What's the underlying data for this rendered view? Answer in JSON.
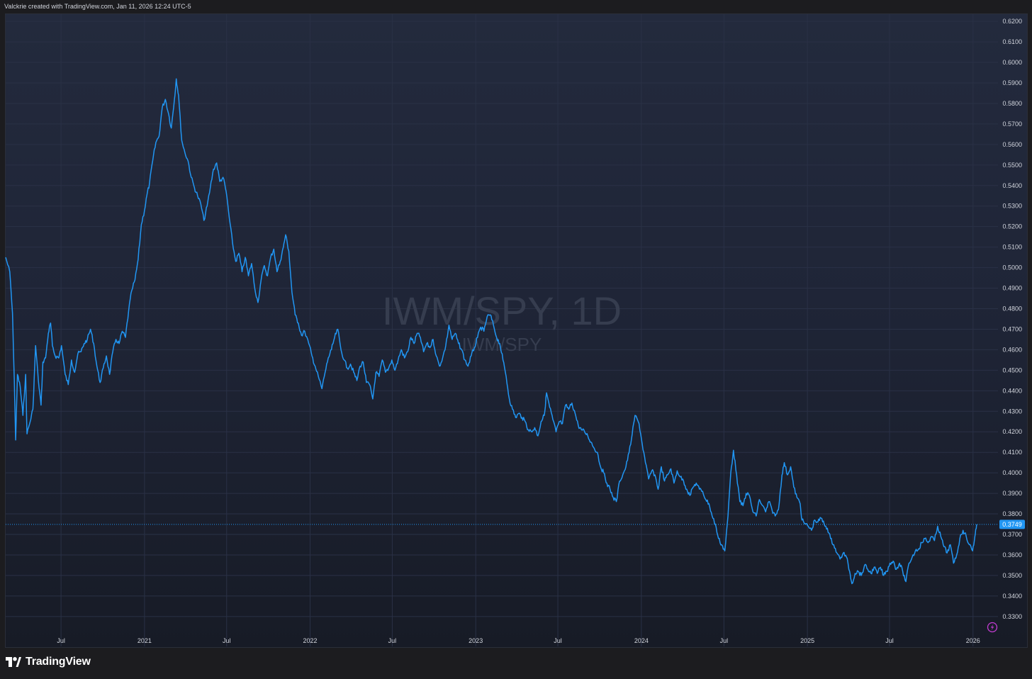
{
  "header": {
    "credit": "Valckrie created with TradingView.com, Jan 11, 2026 12:24 UTC-5"
  },
  "watermark": {
    "title": "IWM/SPY, 1D",
    "subtitle": "IWM/SPY"
  },
  "footer": {
    "brand": "TradingView",
    "logo_icon": "tradingview-logo-icon"
  },
  "badge": {
    "icon": "lightning-icon",
    "color": "#c23cd1"
  },
  "colors": {
    "line": "#2196f3",
    "grid": "#2a3146",
    "axis_text": "#d1d4dc",
    "price_label_bg": "#2196f3",
    "watermark": "#363d4f"
  },
  "chart_data": {
    "type": "line",
    "title": "IWM/SPY, 1D",
    "series_name": "IWM/SPY",
    "timeframe": "1D",
    "current_value": "0.3749",
    "y_ticks": [
      "0.6200",
      "0.6100",
      "0.6000",
      "0.5900",
      "0.5800",
      "0.5700",
      "0.5600",
      "0.5500",
      "0.5400",
      "0.5300",
      "0.5200",
      "0.5100",
      "0.5000",
      "0.4900",
      "0.4800",
      "0.4700",
      "0.4600",
      "0.4500",
      "0.4400",
      "0.4300",
      "0.4200",
      "0.4100",
      "0.4000",
      "0.3900",
      "0.3800",
      "0.3700",
      "0.3600",
      "0.3500",
      "0.3400",
      "0.3300"
    ],
    "x_ticks": [
      {
        "label": "Jul",
        "date": "2020-07-01"
      },
      {
        "label": "2021",
        "date": "2021-01-01"
      },
      {
        "label": "Jul",
        "date": "2021-07-01"
      },
      {
        "label": "2022",
        "date": "2022-01-01"
      },
      {
        "label": "Jul",
        "date": "2022-07-01"
      },
      {
        "label": "2023",
        "date": "2023-01-01"
      },
      {
        "label": "Jul",
        "date": "2023-07-01"
      },
      {
        "label": "2024",
        "date": "2024-01-01"
      },
      {
        "label": "Jul",
        "date": "2024-07-01"
      },
      {
        "label": "2025",
        "date": "2025-01-01"
      },
      {
        "label": "Jul",
        "date": "2025-07-01"
      },
      {
        "label": "2026",
        "date": "2026-01-01"
      }
    ],
    "x_range": [
      "2020-03-01",
      "2026-02-25"
    ],
    "ylim": [
      0.322,
      0.6235
    ],
    "grid": true,
    "points": [
      [
        "2020-03-01",
        0.505
      ],
      [
        "2020-03-10",
        0.498
      ],
      [
        "2020-03-16",
        0.478
      ],
      [
        "2020-03-20",
        0.445
      ],
      [
        "2020-03-23",
        0.416
      ],
      [
        "2020-03-27",
        0.448
      ],
      [
        "2020-04-02",
        0.442
      ],
      [
        "2020-04-08",
        0.428
      ],
      [
        "2020-04-14",
        0.448
      ],
      [
        "2020-04-17",
        0.419
      ],
      [
        "2020-04-24",
        0.425
      ],
      [
        "2020-04-30",
        0.431
      ],
      [
        "2020-05-06",
        0.462
      ],
      [
        "2020-05-12",
        0.445
      ],
      [
        "2020-05-18",
        0.433
      ],
      [
        "2020-05-22",
        0.454
      ],
      [
        "2020-05-28",
        0.456
      ],
      [
        "2020-06-03",
        0.468
      ],
      [
        "2020-06-08",
        0.473
      ],
      [
        "2020-06-12",
        0.462
      ],
      [
        "2020-06-18",
        0.457
      ],
      [
        "2020-06-26",
        0.456
      ],
      [
        "2020-07-02",
        0.462
      ],
      [
        "2020-07-10",
        0.448
      ],
      [
        "2020-07-17",
        0.443
      ],
      [
        "2020-07-24",
        0.455
      ],
      [
        "2020-07-31",
        0.449
      ],
      [
        "2020-08-07",
        0.458
      ],
      [
        "2020-08-14",
        0.459
      ],
      [
        "2020-08-21",
        0.463
      ],
      [
        "2020-08-28",
        0.465
      ],
      [
        "2020-09-04",
        0.47
      ],
      [
        "2020-09-11",
        0.463
      ],
      [
        "2020-09-18",
        0.452
      ],
      [
        "2020-09-25",
        0.444
      ],
      [
        "2020-10-02",
        0.451
      ],
      [
        "2020-10-09",
        0.457
      ],
      [
        "2020-10-16",
        0.448
      ],
      [
        "2020-10-23",
        0.459
      ],
      [
        "2020-10-30",
        0.465
      ],
      [
        "2020-11-06",
        0.463
      ],
      [
        "2020-11-13",
        0.469
      ],
      [
        "2020-11-20",
        0.466
      ],
      [
        "2020-11-27",
        0.479
      ],
      [
        "2020-12-04",
        0.489
      ],
      [
        "2020-12-11",
        0.494
      ],
      [
        "2020-12-18",
        0.504
      ],
      [
        "2020-12-25",
        0.521
      ],
      [
        "2021-01-01",
        0.528
      ],
      [
        "2021-01-06",
        0.535
      ],
      [
        "2021-01-12",
        0.541
      ],
      [
        "2021-01-19",
        0.552
      ],
      [
        "2021-01-26",
        0.561
      ],
      [
        "2021-02-02",
        0.564
      ],
      [
        "2021-02-09",
        0.578
      ],
      [
        "2021-02-16",
        0.582
      ],
      [
        "2021-02-23",
        0.575
      ],
      [
        "2021-03-01",
        0.568
      ],
      [
        "2021-03-08",
        0.582
      ],
      [
        "2021-03-12",
        0.592
      ],
      [
        "2021-03-17",
        0.584
      ],
      [
        "2021-03-24",
        0.562
      ],
      [
        "2021-03-31",
        0.556
      ],
      [
        "2021-04-07",
        0.552
      ],
      [
        "2021-04-14",
        0.544
      ],
      [
        "2021-04-21",
        0.539
      ],
      [
        "2021-04-28",
        0.535
      ],
      [
        "2021-05-05",
        0.531
      ],
      [
        "2021-05-12",
        0.523
      ],
      [
        "2021-05-19",
        0.53
      ],
      [
        "2021-05-26",
        0.539
      ],
      [
        "2021-06-02",
        0.548
      ],
      [
        "2021-06-09",
        0.551
      ],
      [
        "2021-06-16",
        0.542
      ],
      [
        "2021-06-23",
        0.544
      ],
      [
        "2021-06-30",
        0.537
      ],
      [
        "2021-07-07",
        0.524
      ],
      [
        "2021-07-14",
        0.512
      ],
      [
        "2021-07-21",
        0.503
      ],
      [
        "2021-07-28",
        0.507
      ],
      [
        "2021-08-04",
        0.498
      ],
      [
        "2021-08-11",
        0.505
      ],
      [
        "2021-08-18",
        0.496
      ],
      [
        "2021-08-25",
        0.502
      ],
      [
        "2021-09-01",
        0.49
      ],
      [
        "2021-09-08",
        0.483
      ],
      [
        "2021-09-15",
        0.494
      ],
      [
        "2021-09-22",
        0.501
      ],
      [
        "2021-09-29",
        0.496
      ],
      [
        "2021-10-06",
        0.505
      ],
      [
        "2021-10-13",
        0.509
      ],
      [
        "2021-10-20",
        0.498
      ],
      [
        "2021-10-27",
        0.503
      ],
      [
        "2021-11-03",
        0.51
      ],
      [
        "2021-11-08",
        0.516
      ],
      [
        "2021-11-15",
        0.508
      ],
      [
        "2021-11-22",
        0.488
      ],
      [
        "2021-11-29",
        0.477
      ],
      [
        "2021-12-06",
        0.473
      ],
      [
        "2021-12-13",
        0.467
      ],
      [
        "2021-12-20",
        0.469
      ],
      [
        "2021-12-29",
        0.463
      ],
      [
        "2022-01-05",
        0.457
      ],
      [
        "2022-01-12",
        0.452
      ],
      [
        "2022-01-19",
        0.447
      ],
      [
        "2022-01-27",
        0.441
      ],
      [
        "2022-02-03",
        0.449
      ],
      [
        "2022-02-10",
        0.456
      ],
      [
        "2022-02-17",
        0.46
      ],
      [
        "2022-02-24",
        0.466
      ],
      [
        "2022-03-03",
        0.47
      ],
      [
        "2022-03-10",
        0.46
      ],
      [
        "2022-03-17",
        0.455
      ],
      [
        "2022-03-24",
        0.451
      ],
      [
        "2022-03-31",
        0.453
      ],
      [
        "2022-04-07",
        0.449
      ],
      [
        "2022-04-14",
        0.445
      ],
      [
        "2022-04-21",
        0.452
      ],
      [
        "2022-04-28",
        0.454
      ],
      [
        "2022-05-05",
        0.444
      ],
      [
        "2022-05-12",
        0.443
      ],
      [
        "2022-05-19",
        0.436
      ],
      [
        "2022-05-26",
        0.449
      ],
      [
        "2022-06-02",
        0.447
      ],
      [
        "2022-06-09",
        0.455
      ],
      [
        "2022-06-16",
        0.449
      ],
      [
        "2022-06-23",
        0.451
      ],
      [
        "2022-06-30",
        0.455
      ],
      [
        "2022-07-07",
        0.45
      ],
      [
        "2022-07-14",
        0.455
      ],
      [
        "2022-07-21",
        0.46
      ],
      [
        "2022-07-28",
        0.456
      ],
      [
        "2022-08-04",
        0.459
      ],
      [
        "2022-08-11",
        0.466
      ],
      [
        "2022-08-18",
        0.463
      ],
      [
        "2022-08-25",
        0.468
      ],
      [
        "2022-09-01",
        0.466
      ],
      [
        "2022-09-08",
        0.459
      ],
      [
        "2022-09-15",
        0.463
      ],
      [
        "2022-09-22",
        0.461
      ],
      [
        "2022-09-29",
        0.465
      ],
      [
        "2022-10-06",
        0.457
      ],
      [
        "2022-10-13",
        0.452
      ],
      [
        "2022-10-20",
        0.456
      ],
      [
        "2022-10-27",
        0.462
      ],
      [
        "2022-11-03",
        0.472
      ],
      [
        "2022-11-10",
        0.465
      ],
      [
        "2022-11-17",
        0.468
      ],
      [
        "2022-11-24",
        0.463
      ],
      [
        "2022-12-01",
        0.46
      ],
      [
        "2022-12-08",
        0.455
      ],
      [
        "2022-12-15",
        0.452
      ],
      [
        "2022-12-22",
        0.457
      ],
      [
        "2022-12-29",
        0.461
      ],
      [
        "2023-01-05",
        0.466
      ],
      [
        "2023-01-12",
        0.471
      ],
      [
        "2023-01-19",
        0.469
      ],
      [
        "2023-01-26",
        0.476
      ],
      [
        "2023-02-02",
        0.477
      ],
      [
        "2023-02-09",
        0.472
      ],
      [
        "2023-02-16",
        0.466
      ],
      [
        "2023-02-23",
        0.463
      ],
      [
        "2023-03-02",
        0.455
      ],
      [
        "2023-03-09",
        0.447
      ],
      [
        "2023-03-16",
        0.436
      ],
      [
        "2023-03-23",
        0.431
      ],
      [
        "2023-03-30",
        0.427
      ],
      [
        "2023-04-06",
        0.429
      ],
      [
        "2023-04-13",
        0.427
      ],
      [
        "2023-04-20",
        0.425
      ],
      [
        "2023-04-27",
        0.421
      ],
      [
        "2023-05-04",
        0.42
      ],
      [
        "2023-05-11",
        0.422
      ],
      [
        "2023-05-18",
        0.418
      ],
      [
        "2023-05-25",
        0.425
      ],
      [
        "2023-06-01",
        0.428
      ],
      [
        "2023-06-06",
        0.439
      ],
      [
        "2023-06-13",
        0.432
      ],
      [
        "2023-06-20",
        0.426
      ],
      [
        "2023-06-27",
        0.42
      ],
      [
        "2023-07-04",
        0.425
      ],
      [
        "2023-07-11",
        0.424
      ],
      [
        "2023-07-18",
        0.433
      ],
      [
        "2023-07-25",
        0.431
      ],
      [
        "2023-08-01",
        0.434
      ],
      [
        "2023-08-08",
        0.429
      ],
      [
        "2023-08-15",
        0.423
      ],
      [
        "2023-08-22",
        0.421
      ],
      [
        "2023-08-29",
        0.42
      ],
      [
        "2023-09-05",
        0.418
      ],
      [
        "2023-09-12",
        0.415
      ],
      [
        "2023-09-19",
        0.412
      ],
      [
        "2023-09-26",
        0.41
      ],
      [
        "2023-10-03",
        0.403
      ],
      [
        "2023-10-10",
        0.4
      ],
      [
        "2023-10-17",
        0.395
      ],
      [
        "2023-10-24",
        0.392
      ],
      [
        "2023-10-31",
        0.388
      ],
      [
        "2023-11-07",
        0.386
      ],
      [
        "2023-11-14",
        0.396
      ],
      [
        "2023-11-21",
        0.399
      ],
      [
        "2023-11-28",
        0.403
      ],
      [
        "2023-12-05",
        0.41
      ],
      [
        "2023-12-12",
        0.419
      ],
      [
        "2023-12-18",
        0.428
      ],
      [
        "2023-12-27",
        0.424
      ],
      [
        "2024-01-03",
        0.414
      ],
      [
        "2024-01-10",
        0.405
      ],
      [
        "2024-01-17",
        0.397
      ],
      [
        "2024-01-24",
        0.401
      ],
      [
        "2024-01-31",
        0.399
      ],
      [
        "2024-02-07",
        0.392
      ],
      [
        "2024-02-14",
        0.403
      ],
      [
        "2024-02-21",
        0.396
      ],
      [
        "2024-02-28",
        0.399
      ],
      [
        "2024-03-06",
        0.402
      ],
      [
        "2024-03-13",
        0.395
      ],
      [
        "2024-03-20",
        0.401
      ],
      [
        "2024-03-27",
        0.398
      ],
      [
        "2024-04-03",
        0.396
      ],
      [
        "2024-04-10",
        0.392
      ],
      [
        "2024-04-17",
        0.389
      ],
      [
        "2024-04-24",
        0.393
      ],
      [
        "2024-05-01",
        0.395
      ],
      [
        "2024-05-08",
        0.392
      ],
      [
        "2024-05-15",
        0.391
      ],
      [
        "2024-05-22",
        0.387
      ],
      [
        "2024-05-29",
        0.385
      ],
      [
        "2024-06-05",
        0.379
      ],
      [
        "2024-06-12",
        0.375
      ],
      [
        "2024-06-19",
        0.368
      ],
      [
        "2024-06-26",
        0.365
      ],
      [
        "2024-07-03",
        0.362
      ],
      [
        "2024-07-10",
        0.379
      ],
      [
        "2024-07-16",
        0.4
      ],
      [
        "2024-07-22",
        0.411
      ],
      [
        "2024-07-29",
        0.399
      ],
      [
        "2024-08-05",
        0.386
      ],
      [
        "2024-08-12",
        0.384
      ],
      [
        "2024-08-19",
        0.39
      ],
      [
        "2024-08-26",
        0.389
      ],
      [
        "2024-09-03",
        0.381
      ],
      [
        "2024-09-10",
        0.379
      ],
      [
        "2024-09-17",
        0.387
      ],
      [
        "2024-09-24",
        0.384
      ],
      [
        "2024-10-01",
        0.381
      ],
      [
        "2024-10-08",
        0.386
      ],
      [
        "2024-10-15",
        0.382
      ],
      [
        "2024-10-22",
        0.379
      ],
      [
        "2024-10-29",
        0.382
      ],
      [
        "2024-11-06",
        0.399
      ],
      [
        "2024-11-11",
        0.405
      ],
      [
        "2024-11-18",
        0.399
      ],
      [
        "2024-11-25",
        0.403
      ],
      [
        "2024-12-02",
        0.393
      ],
      [
        "2024-12-09",
        0.388
      ],
      [
        "2024-12-16",
        0.385
      ],
      [
        "2024-12-20",
        0.377
      ],
      [
        "2024-12-27",
        0.375
      ],
      [
        "2025-01-03",
        0.374
      ],
      [
        "2025-01-10",
        0.372
      ],
      [
        "2025-01-17",
        0.377
      ],
      [
        "2025-01-24",
        0.376
      ],
      [
        "2025-01-31",
        0.378
      ],
      [
        "2025-02-07",
        0.375
      ],
      [
        "2025-02-14",
        0.373
      ],
      [
        "2025-02-21",
        0.368
      ],
      [
        "2025-02-28",
        0.365
      ],
      [
        "2025-03-07",
        0.361
      ],
      [
        "2025-03-14",
        0.358
      ],
      [
        "2025-03-21",
        0.361
      ],
      [
        "2025-03-28",
        0.359
      ],
      [
        "2025-04-04",
        0.352
      ],
      [
        "2025-04-09",
        0.346
      ],
      [
        "2025-04-16",
        0.351
      ],
      [
        "2025-04-23",
        0.352
      ],
      [
        "2025-04-30",
        0.35
      ],
      [
        "2025-05-07",
        0.355
      ],
      [
        "2025-05-14",
        0.353
      ],
      [
        "2025-05-21",
        0.351
      ],
      [
        "2025-05-28",
        0.354
      ],
      [
        "2025-06-04",
        0.351
      ],
      [
        "2025-06-11",
        0.354
      ],
      [
        "2025-06-18",
        0.35
      ],
      [
        "2025-06-25",
        0.352
      ],
      [
        "2025-07-02",
        0.356
      ],
      [
        "2025-07-09",
        0.357
      ],
      [
        "2025-07-16",
        0.353
      ],
      [
        "2025-07-23",
        0.356
      ],
      [
        "2025-07-30",
        0.352
      ],
      [
        "2025-08-06",
        0.347
      ],
      [
        "2025-08-13",
        0.356
      ],
      [
        "2025-08-20",
        0.359
      ],
      [
        "2025-08-27",
        0.362
      ],
      [
        "2025-09-03",
        0.363
      ],
      [
        "2025-09-10",
        0.366
      ],
      [
        "2025-09-17",
        0.368
      ],
      [
        "2025-09-24",
        0.366
      ],
      [
        "2025-10-01",
        0.369
      ],
      [
        "2025-10-08",
        0.367
      ],
      [
        "2025-10-15",
        0.374
      ],
      [
        "2025-10-22",
        0.369
      ],
      [
        "2025-10-29",
        0.364
      ],
      [
        "2025-11-05",
        0.361
      ],
      [
        "2025-11-12",
        0.365
      ],
      [
        "2025-11-19",
        0.356
      ],
      [
        "2025-11-26",
        0.36
      ],
      [
        "2025-12-03",
        0.368
      ],
      [
        "2025-12-10",
        0.372
      ],
      [
        "2025-12-17",
        0.369
      ],
      [
        "2025-12-24",
        0.365
      ],
      [
        "2025-12-31",
        0.362
      ],
      [
        "2026-01-05",
        0.369
      ],
      [
        "2026-01-09",
        0.3749
      ]
    ]
  }
}
